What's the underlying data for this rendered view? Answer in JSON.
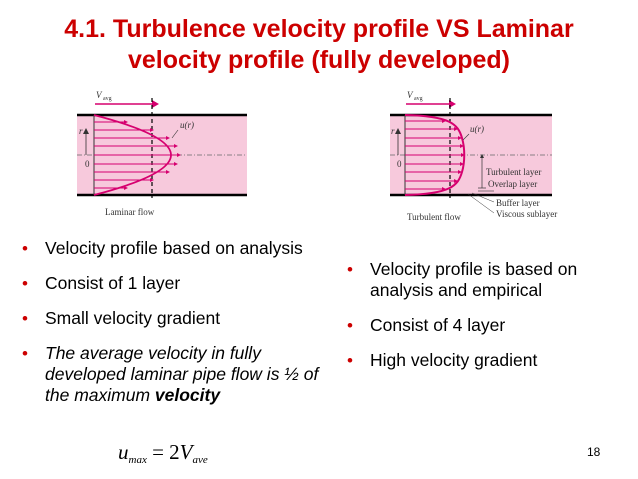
{
  "slide": {
    "title_line1": "4.1. Turbulence velocity profile VS Laminar",
    "title_line2": "velocity profile (fully developed)",
    "page_number": "18"
  },
  "figure_laminar": {
    "v_label": "V",
    "v_sub": "avg",
    "u_label": "u(r)",
    "r_label": "r",
    "zero_label": "0",
    "caption": "Laminar flow"
  },
  "figure_turbulent": {
    "v_label": "V",
    "v_sub": "avg",
    "u_label": "u(r)",
    "r_label": "r",
    "zero_label": "0",
    "caption": "Turbulent flow",
    "layers": [
      "Turbulent layer",
      "Overlap layer",
      "Buffer layer",
      "Viscous sublayer"
    ]
  },
  "left_bullets": {
    "b1": "Velocity profile based on analysis",
    "b2": "Consist of 1 layer",
    "b3": "Small velocity gradient",
    "b4_text": "The average velocity in fully developed laminar pipe flow is ½ of the maximum ",
    "b4_bold": "velocity"
  },
  "right_bullets": {
    "b1": "Velocity profile is based on analysis and empirical",
    "b2": "Consist of 4 layer",
    "b3": "High velocity gradient"
  },
  "formula": {
    "u": "u",
    "u_sub": "max",
    "eq": " = 2",
    "v": "V",
    "v_sub": "ave"
  },
  "colors": {
    "title": "#cc0000",
    "bullet": "#cc0000",
    "profile": "#d6006f",
    "band": "#f7c9dc"
  }
}
